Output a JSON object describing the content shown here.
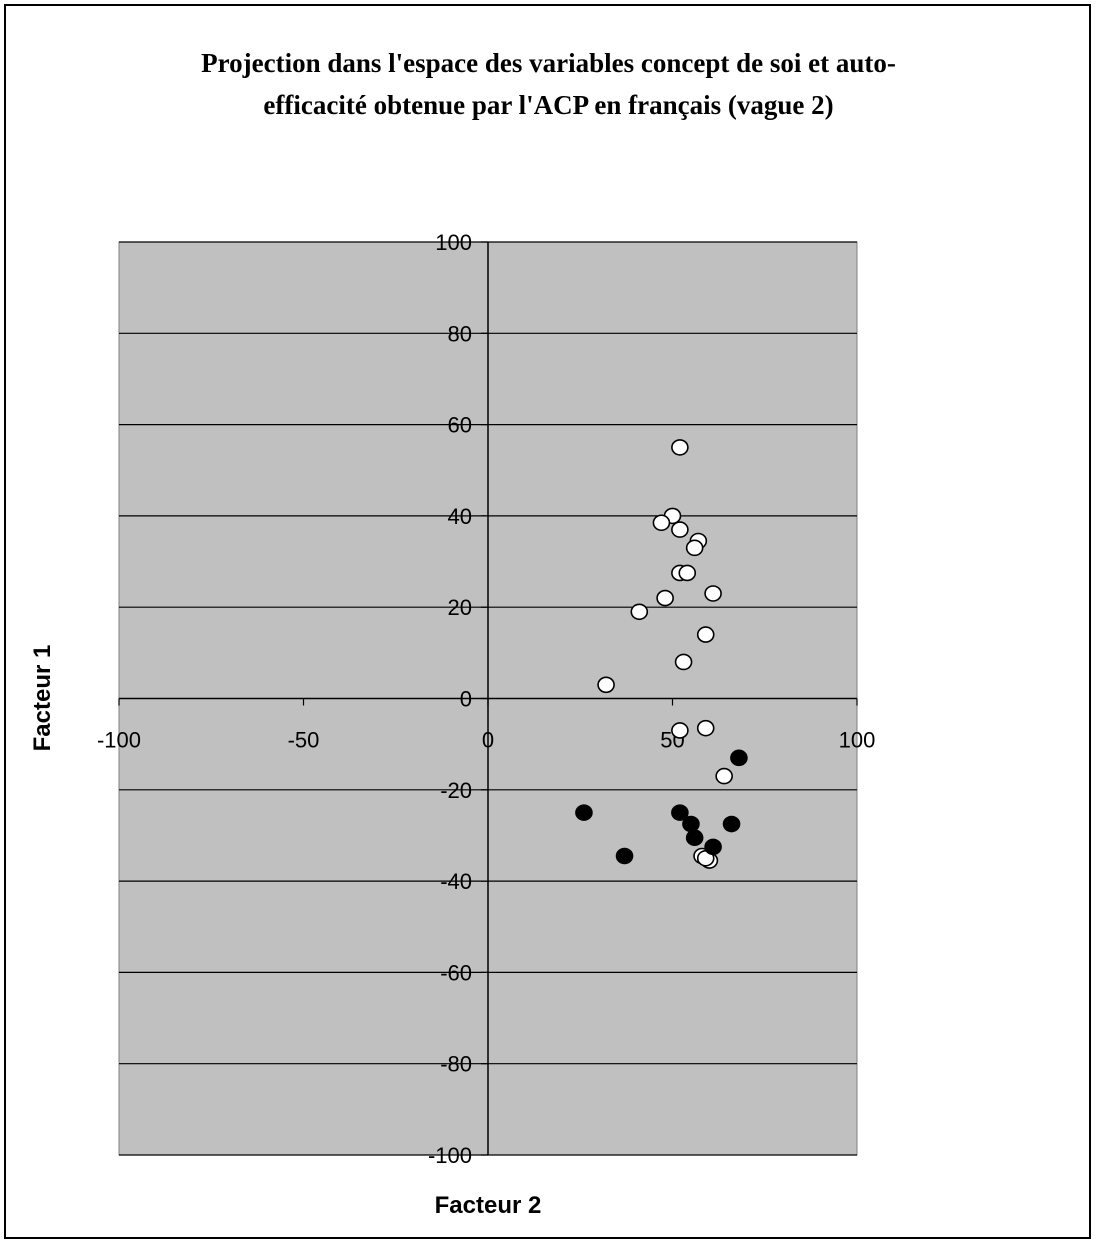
{
  "chart_data": {
    "type": "scatter",
    "title_lines": [
      "Projection dans l'espace des variables concept de soi et auto-",
      "efficacité obtenue par l'ACP en français (vague 2)"
    ],
    "xlabel": "Facteur 2",
    "ylabel": "Facteur 1",
    "xlim": [
      -100,
      100
    ],
    "ylim": [
      -100,
      100
    ],
    "x_ticks": [
      "-100",
      "-50",
      "0",
      "50",
      "100"
    ],
    "y_ticks": [
      "100",
      "80",
      "60",
      "40",
      "20",
      "0",
      "-20",
      "-40",
      "-60",
      "-80",
      "-100"
    ],
    "grid": "horizontal",
    "plot_background": "#c0c0c0",
    "series": [
      {
        "marker": "open-circle",
        "fill": "#ffffff",
        "points": [
          [
            52,
            55
          ],
          [
            50,
            40
          ],
          [
            47,
            38.5
          ],
          [
            52,
            37
          ],
          [
            57,
            34.5
          ],
          [
            56,
            33
          ],
          [
            52,
            27.5
          ],
          [
            54,
            27.5
          ],
          [
            61,
            23
          ],
          [
            48,
            22
          ],
          [
            41,
            19
          ],
          [
            59,
            14
          ],
          [
            53,
            8
          ],
          [
            32,
            3
          ],
          [
            52,
            -7
          ],
          [
            59,
            -6.5
          ],
          [
            64,
            -17
          ],
          [
            58,
            -34.5
          ],
          [
            60,
            -35.5
          ],
          [
            59,
            -35
          ]
        ]
      },
      {
        "marker": "filled-circle",
        "fill": "#000000",
        "points": [
          [
            68,
            -13
          ],
          [
            26,
            -25
          ],
          [
            52,
            -25
          ],
          [
            55,
            -27.5
          ],
          [
            66,
            -27.5
          ],
          [
            56,
            -30.5
          ],
          [
            61,
            -32.5
          ],
          [
            37,
            -34.5
          ]
        ]
      }
    ]
  }
}
